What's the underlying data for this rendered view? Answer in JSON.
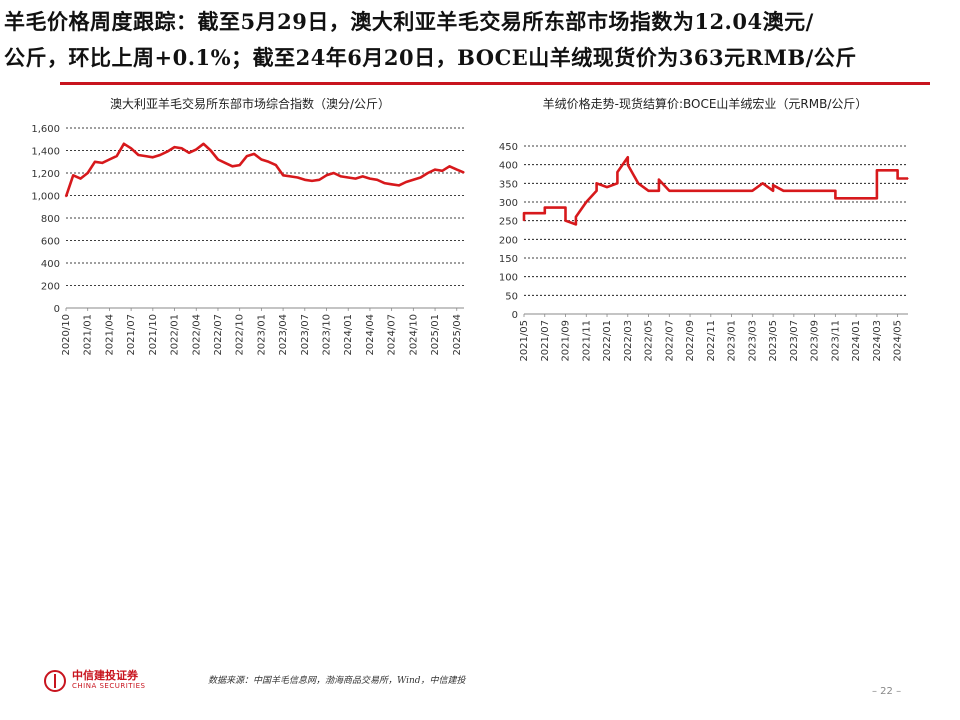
{
  "headline": {
    "line1": "羊毛价格周度跟踪：截至5月29日，澳大利亚羊毛交易所东部市场指数为12.04澳元/",
    "line2": "公斤，环比上周+0.1%；截至24年6月20日，BOCE山羊绒现货价为363元RMB/公斤"
  },
  "colors": {
    "accent": "#c8141e",
    "line": "#d7191c",
    "grid": "#000000"
  },
  "chart_data": [
    {
      "type": "line",
      "title": "澳大利亚羊毛交易所东部市场综合指数（澳分/公斤）",
      "ylim": [
        0,
        1600
      ],
      "yticks": [
        "0",
        "200",
        "400",
        "600",
        "800",
        "1,000",
        "1,200",
        "1,400",
        "1,600"
      ],
      "ytick_values": [
        0,
        200,
        400,
        600,
        800,
        1000,
        1200,
        1400,
        1600
      ],
      "xticks": [
        "2020/10",
        "2021/02",
        "2021/06",
        "2021/10",
        "2022/02",
        "2022/06",
        "2022/10",
        "2023/02",
        "2023/06",
        "2023/10",
        "2024/02",
        "2024/06",
        "2024/10",
        "2025/02"
      ],
      "xlabels": [
        "2020/10",
        "2021/01",
        "2021/04",
        "2021/07",
        "2021/10",
        "2022/01",
        "2022/04",
        "2022/07",
        "2022/10",
        "2023/01",
        "2023/04",
        "2023/07",
        "2023/10",
        "2024/01",
        "2024/04",
        "2024/07",
        "2024/10",
        "2025/01",
        "2025/04"
      ],
      "x_start": "2020/10",
      "x_end": "2025/05",
      "series": [
        {
          "points": [
            [
              "2020/10",
              990
            ],
            [
              "2020/11",
              1180
            ],
            [
              "2020/12",
              1150
            ],
            [
              "2021/01",
              1200
            ],
            [
              "2021/02",
              1300
            ],
            [
              "2021/03",
              1290
            ],
            [
              "2021/04",
              1320
            ],
            [
              "2021/05",
              1350
            ],
            [
              "2021/06",
              1460
            ],
            [
              "2021/07",
              1420
            ],
            [
              "2021/08",
              1360
            ],
            [
              "2021/09",
              1350
            ],
            [
              "2021/10",
              1340
            ],
            [
              "2021/11",
              1360
            ],
            [
              "2021/12",
              1390
            ],
            [
              "2022/01",
              1430
            ],
            [
              "2022/02",
              1420
            ],
            [
              "2022/03",
              1380
            ],
            [
              "2022/04",
              1410
            ],
            [
              "2022/05",
              1460
            ],
            [
              "2022/06",
              1400
            ],
            [
              "2022/07",
              1320
            ],
            [
              "2022/08",
              1290
            ],
            [
              "2022/09",
              1260
            ],
            [
              "2022/10",
              1270
            ],
            [
              "2022/11",
              1350
            ],
            [
              "2022/12",
              1370
            ],
            [
              "2023/01",
              1320
            ],
            [
              "2023/02",
              1300
            ],
            [
              "2023/03",
              1270
            ],
            [
              "2023/04",
              1180
            ],
            [
              "2023/05",
              1170
            ],
            [
              "2023/06",
              1160
            ],
            [
              "2023/07",
              1140
            ],
            [
              "2023/08",
              1130
            ],
            [
              "2023/09",
              1140
            ],
            [
              "2023/10",
              1180
            ],
            [
              "2023/11",
              1200
            ],
            [
              "2023/12",
              1170
            ],
            [
              "2024/01",
              1160
            ],
            [
              "2024/02",
              1150
            ],
            [
              "2024/03",
              1170
            ],
            [
              "2024/04",
              1150
            ],
            [
              "2024/05",
              1140
            ],
            [
              "2024/06",
              1110
            ],
            [
              "2024/07",
              1100
            ],
            [
              "2024/08",
              1090
            ],
            [
              "2024/09",
              1120
            ],
            [
              "2024/10",
              1140
            ],
            [
              "2024/11",
              1160
            ],
            [
              "2024/12",
              1200
            ],
            [
              "2025/01",
              1230
            ],
            [
              "2025/02",
              1220
            ],
            [
              "2025/03",
              1260
            ],
            [
              "2025/04",
              1230
            ],
            [
              "2025/05",
              1204
            ]
          ]
        }
      ]
    },
    {
      "type": "line",
      "title": "羊绒价格走势-现货结算价:BOCE山羊绒宏业（元RMB/公斤）",
      "ylim": [
        0,
        450
      ],
      "yticks": [
        "0",
        "50",
        "100",
        "150",
        "200",
        "250",
        "300",
        "350",
        "400",
        "450"
      ],
      "ytick_values": [
        0,
        50,
        100,
        150,
        200,
        250,
        300,
        350,
        400,
        450
      ],
      "xlabels": [
        "2021/05",
        "2021/07",
        "2021/09",
        "2021/11",
        "2022/01",
        "2022/03",
        "2022/05",
        "2022/07",
        "2022/09",
        "2022/11",
        "2023/01",
        "2023/03",
        "2023/05",
        "2023/07",
        "2023/09",
        "2023/11",
        "2024/01",
        "2024/03",
        "2024/05"
      ],
      "x_start": "2021/05",
      "x_end": "2024/06",
      "series": [
        {
          "points": [
            [
              "2021/05",
              250
            ],
            [
              "2021/05",
              270
            ],
            [
              "2021/06",
              270
            ],
            [
              "2021/07",
              270
            ],
            [
              "2021/07",
              285
            ],
            [
              "2021/08",
              285
            ],
            [
              "2021/09",
              285
            ],
            [
              "2021/09",
              250
            ],
            [
              "2021/10",
              240
            ],
            [
              "2021/10",
              260
            ],
            [
              "2021/11",
              300
            ],
            [
              "2021/12",
              330
            ],
            [
              "2021/12",
              350
            ],
            [
              "2022/01",
              340
            ],
            [
              "2022/02",
              350
            ],
            [
              "2022/02",
              380
            ],
            [
              "2022/03",
              420
            ],
            [
              "2022/03",
              400
            ],
            [
              "2022/04",
              350
            ],
            [
              "2022/05",
              330
            ],
            [
              "2022/06",
              330
            ],
            [
              "2022/06",
              360
            ],
            [
              "2022/07",
              330
            ],
            [
              "2022/09",
              330
            ],
            [
              "2022/11",
              330
            ],
            [
              "2023/01",
              330
            ],
            [
              "2023/03",
              330
            ],
            [
              "2023/04",
              350
            ],
            [
              "2023/05",
              330
            ],
            [
              "2023/05",
              345
            ],
            [
              "2023/06",
              330
            ],
            [
              "2023/08",
              330
            ],
            [
              "2023/10",
              330
            ],
            [
              "2023/11",
              330
            ],
            [
              "2023/11",
              310
            ],
            [
              "2024/01",
              310
            ],
            [
              "2024/03",
              310
            ],
            [
              "2024/03",
              385
            ],
            [
              "2024/04",
              385
            ],
            [
              "2024/05",
              385
            ],
            [
              "2024/05",
              363
            ],
            [
              "2024/06",
              363
            ]
          ]
        }
      ]
    }
  ],
  "footer": {
    "logo_cn": "中信建投证券",
    "logo_en": "CHINA SECURITIES",
    "source": "数据来源：中国羊毛信息网，渤海商品交易所，Wind，中信建投",
    "page_number": "– 22 –"
  }
}
